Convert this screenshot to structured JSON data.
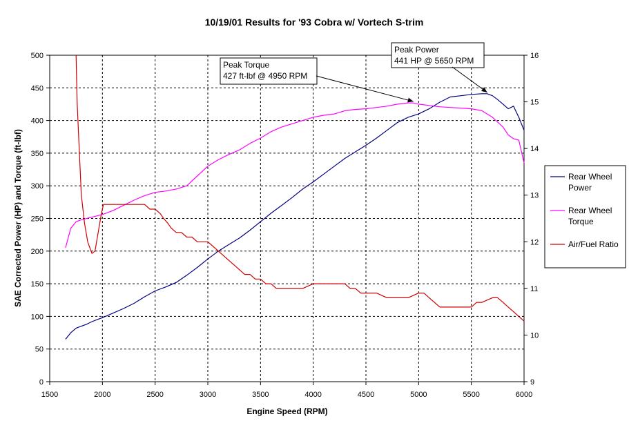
{
  "chart_data": {
    "type": "line",
    "title": "10/19/01 Results for '93 Cobra w/ Vortech S-trim",
    "xlabel": "Engine Speed (RPM)",
    "ylabel": "SAE Corrected Power (HP) and Torque (ft-lbf)",
    "y2label": "",
    "xlim": [
      1500,
      6000
    ],
    "ylim": [
      0,
      500
    ],
    "y2lim": [
      9,
      16
    ],
    "grid": true,
    "legend_position": "right",
    "x_ticks": [
      "1500",
      "2000",
      "2500",
      "3000",
      "3500",
      "4000",
      "4500",
      "5000",
      "5500",
      "6000"
    ],
    "y_ticks": [
      "0",
      "50",
      "100",
      "150",
      "200",
      "250",
      "300",
      "350",
      "400",
      "450",
      "500"
    ],
    "y2_ticks": [
      "9",
      "10",
      "11",
      "12",
      "13",
      "14",
      "15",
      "16"
    ],
    "series": [
      {
        "name": "Rear Wheel Power",
        "legend_lines": [
          "Rear Wheel",
          "Power"
        ],
        "axis": "left",
        "color": "#000080",
        "x": [
          1650,
          1700,
          1750,
          1800,
          1850,
          1900,
          1950,
          2000,
          2100,
          2200,
          2300,
          2400,
          2500,
          2600,
          2700,
          2800,
          2900,
          3000,
          3100,
          3200,
          3300,
          3400,
          3500,
          3600,
          3700,
          3800,
          3900,
          4000,
          4100,
          4200,
          4300,
          4400,
          4500,
          4600,
          4700,
          4800,
          4900,
          5000,
          5100,
          5200,
          5300,
          5400,
          5500,
          5600,
          5650,
          5700,
          5750,
          5800,
          5850,
          5900,
          5950,
          6000
        ],
        "y": [
          65,
          75,
          82,
          85,
          88,
          92,
          95,
          98,
          105,
          112,
          120,
          130,
          139,
          145,
          152,
          163,
          175,
          188,
          200,
          210,
          220,
          232,
          245,
          258,
          270,
          282,
          295,
          306,
          318,
          330,
          342,
          352,
          362,
          373,
          385,
          397,
          405,
          410,
          418,
          428,
          436,
          438,
          440,
          441,
          441,
          438,
          432,
          425,
          418,
          422,
          405,
          385
        ]
      },
      {
        "name": "Rear Wheel Torque",
        "legend_lines": [
          "Rear Wheel",
          "Torque"
        ],
        "axis": "left",
        "color": "#ff00ff",
        "x": [
          1650,
          1700,
          1750,
          1800,
          1900,
          2000,
          2100,
          2200,
          2300,
          2400,
          2500,
          2600,
          2700,
          2800,
          2900,
          3000,
          3100,
          3200,
          3300,
          3400,
          3500,
          3600,
          3700,
          3800,
          3900,
          4000,
          4100,
          4200,
          4300,
          4400,
          4500,
          4600,
          4700,
          4800,
          4900,
          4950,
          5000,
          5100,
          5200,
          5300,
          5400,
          5500,
          5600,
          5700,
          5800,
          5850,
          5900,
          5950,
          6000
        ],
        "y": [
          205,
          235,
          245,
          248,
          252,
          256,
          262,
          270,
          278,
          285,
          290,
          292,
          295,
          300,
          315,
          330,
          340,
          348,
          355,
          365,
          373,
          383,
          390,
          395,
          400,
          405,
          408,
          410,
          415,
          417,
          418,
          420,
          422,
          425,
          427,
          427,
          425,
          423,
          421,
          420,
          419,
          418,
          415,
          405,
          390,
          378,
          372,
          370,
          335
        ]
      },
      {
        "name": "Air/Fuel Ratio",
        "legend_lines": [
          "Air/Fuel Ratio"
        ],
        "axis": "right",
        "color": "#cc0000",
        "x": [
          1750,
          1760,
          1780,
          1800,
          1830,
          1860,
          1900,
          1930,
          1960,
          1990,
          2010,
          2030,
          2060,
          2100,
          2200,
          2300,
          2400,
          2450,
          2500,
          2550,
          2580,
          2620,
          2650,
          2700,
          2750,
          2800,
          2850,
          2900,
          2950,
          3000,
          3050,
          3100,
          3150,
          3200,
          3250,
          3300,
          3350,
          3400,
          3450,
          3500,
          3550,
          3600,
          3650,
          3700,
          3800,
          3900,
          4000,
          4100,
          4200,
          4300,
          4350,
          4400,
          4450,
          4500,
          4600,
          4700,
          4800,
          4900,
          5000,
          5050,
          5100,
          5150,
          5200,
          5250,
          5300,
          5400,
          5500,
          5550,
          5600,
          5700,
          5750,
          5800,
          5850,
          5900,
          5950,
          6000
        ],
        "y": [
          16.0,
          15.0,
          14.0,
          13.0,
          12.4,
          12.0,
          11.75,
          11.8,
          12.2,
          12.6,
          12.8,
          12.8,
          12.8,
          12.8,
          12.8,
          12.8,
          12.8,
          12.7,
          12.7,
          12.6,
          12.5,
          12.4,
          12.3,
          12.2,
          12.2,
          12.1,
          12.1,
          12.0,
          12.0,
          12.0,
          11.9,
          11.8,
          11.7,
          11.6,
          11.5,
          11.4,
          11.3,
          11.3,
          11.2,
          11.2,
          11.1,
          11.1,
          11.0,
          11.0,
          11.0,
          11.0,
          11.1,
          11.1,
          11.1,
          11.1,
          11.0,
          11.0,
          10.9,
          10.9,
          10.9,
          10.8,
          10.8,
          10.8,
          10.9,
          10.9,
          10.8,
          10.7,
          10.6,
          10.6,
          10.6,
          10.6,
          10.6,
          10.7,
          10.7,
          10.8,
          10.8,
          10.7,
          10.6,
          10.5,
          10.4,
          10.3
        ]
      }
    ],
    "annotations": [
      {
        "name": "peak-torque",
        "lines": [
          "Peak Torque",
          "427 ft-lbf @ 4950 RPM"
        ],
        "target_x": 4950,
        "target_y": 427
      },
      {
        "name": "peak-power",
        "lines": [
          "Peak Power",
          "441 HP @ 5650 RPM"
        ],
        "target_x": 5650,
        "target_y": 441
      }
    ]
  }
}
